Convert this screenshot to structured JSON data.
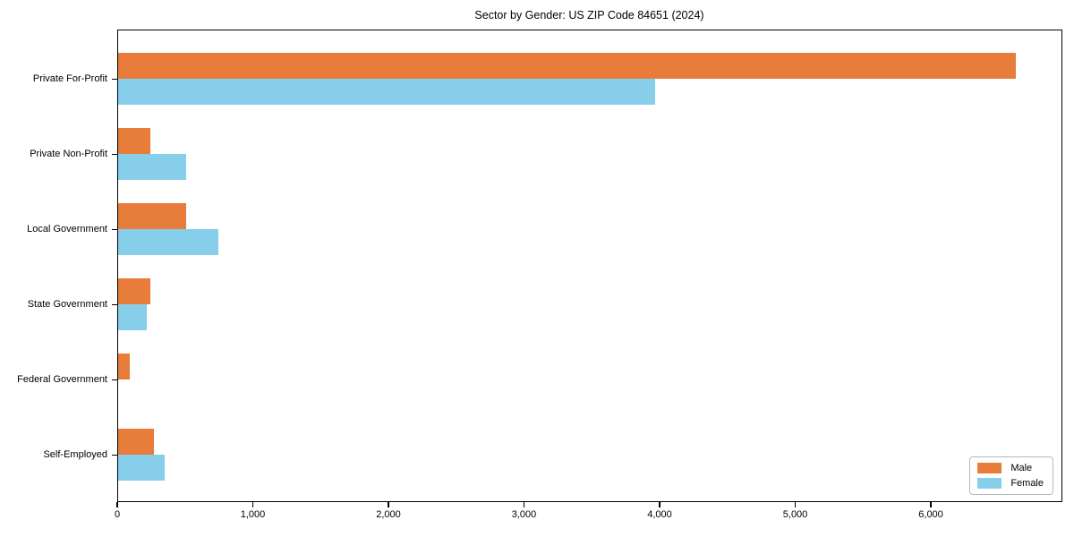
{
  "chart_data": {
    "type": "bar",
    "orientation": "horizontal",
    "title": "Sector by Gender: US ZIP Code 84651 (2024)",
    "categories": [
      "Private For-Profit",
      "Private Non-Profit",
      "Local Government",
      "State Government",
      "Federal Government",
      "Self-Employed"
    ],
    "series": [
      {
        "name": "Male",
        "color": "#E87D3B",
        "values": [
          6625,
          245,
          505,
          245,
          90,
          270
        ]
      },
      {
        "name": "Female",
        "color": "#87CEEB",
        "values": [
          3970,
          505,
          745,
          220,
          8,
          350
        ]
      }
    ],
    "xlabel": "",
    "ylabel": "",
    "xlim": [
      0,
      6970
    ],
    "xticks": [
      0,
      1000,
      2000,
      3000,
      4000,
      5000,
      6000
    ],
    "xtick_labels": [
      "0",
      "1,000",
      "2,000",
      "3,000",
      "4,000",
      "5,000",
      "6,000"
    ],
    "grid": false,
    "legend_position": "lower right",
    "axis_color": "#000000",
    "background_color": "#ffffff"
  },
  "legend": {
    "items": [
      {
        "label": "Male",
        "color": "#E87D3B"
      },
      {
        "label": "Female",
        "color": "#87CEEB"
      }
    ]
  }
}
